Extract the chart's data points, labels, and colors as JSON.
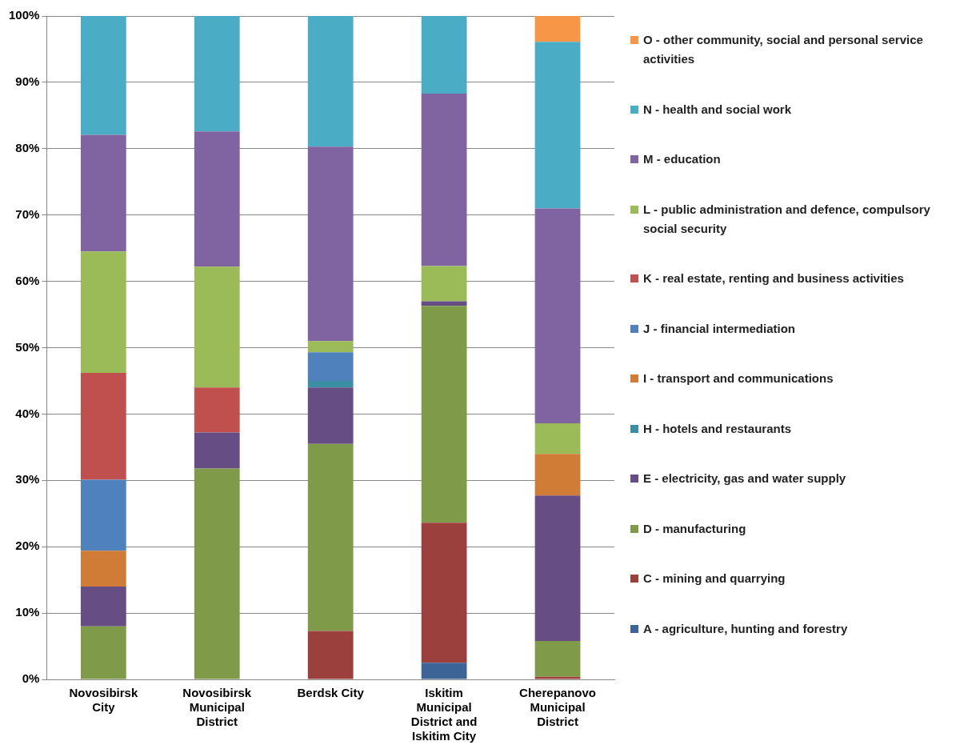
{
  "chart_data": {
    "type": "bar",
    "stacked": true,
    "categories": [
      "Novosibirsk City",
      "Novosibirsk Municipal District",
      "Berdsk City",
      "Iskitim Municipal District and Iskitim City",
      "Cherepanovo Municipal District"
    ],
    "series": [
      {
        "name": "A - agriculture, hunting and forestry",
        "color": "#3c6496",
        "values": [
          0,
          0,
          0,
          2.5,
          0
        ]
      },
      {
        "name": "C - mining and quarrying",
        "color": "#9c403d",
        "values": [
          0,
          0,
          7.3,
          21.1,
          0.4
        ]
      },
      {
        "name": "D - manufacturing",
        "color": "#7f9a48",
        "values": [
          8,
          31.8,
          28.2,
          32.7,
          5.4
        ]
      },
      {
        "name": "E - electricity, gas and water supply",
        "color": "#664d83",
        "values": [
          6,
          5.4,
          8.5,
          0.7,
          21.9
        ]
      },
      {
        "name": "H - hotels and restaurants",
        "color": "#3b8fa5",
        "values": [
          0,
          0,
          1,
          0,
          0
        ]
      },
      {
        "name": "I - transport and communications",
        "color": "#d07c36",
        "values": [
          5.4,
          0,
          0,
          0,
          6.3
        ]
      },
      {
        "name": "J - financial intermediation",
        "color": "#4f81bd",
        "values": [
          10.7,
          0,
          4.3,
          0,
          0
        ]
      },
      {
        "name": "K - real estate, renting and business activities",
        "color": "#c0504d",
        "values": [
          16.1,
          6.8,
          0,
          0,
          0
        ]
      },
      {
        "name": "L - public administration and defence, compulsory social security",
        "color": "#9bbb59",
        "values": [
          18.3,
          18.2,
          1.7,
          5.3,
          4.6
        ]
      },
      {
        "name": "M - education",
        "color": "#8064a2",
        "values": [
          17.6,
          20.4,
          29.3,
          26,
          32.4
        ]
      },
      {
        "name": "N - health and social work",
        "color": "#4bacc6",
        "values": [
          17.9,
          17.4,
          19.7,
          11.7,
          25.1
        ]
      },
      {
        "name": "O - other community, social and personal service activities",
        "color": "#f79646",
        "values": [
          0,
          0,
          0,
          0,
          3.9
        ]
      }
    ],
    "ylim": [
      0,
      100
    ],
    "yticks": [
      {
        "value": 0,
        "label": "0%"
      },
      {
        "value": 10,
        "label": "10%"
      },
      {
        "value": 20,
        "label": "20%"
      },
      {
        "value": 30,
        "label": "30%"
      },
      {
        "value": 40,
        "label": "40%"
      },
      {
        "value": 50,
        "label": "50%"
      },
      {
        "value": 60,
        "label": "60%"
      },
      {
        "value": 70,
        "label": "70%"
      },
      {
        "value": 80,
        "label": "80%"
      },
      {
        "value": 90,
        "label": "90%"
      },
      {
        "value": 100,
        "label": "100%"
      }
    ],
    "grid": "y",
    "legend": "right"
  }
}
